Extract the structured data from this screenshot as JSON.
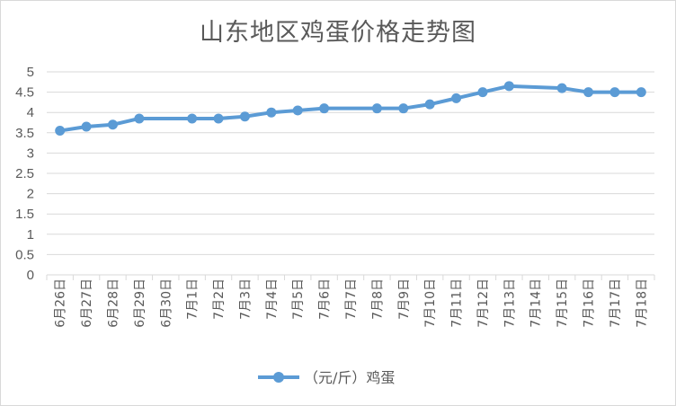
{
  "chart_data": {
    "type": "line",
    "title": "山东地区鸡蛋价格走势图",
    "xlabel": "",
    "ylabel": "",
    "ylim": [
      0,
      5
    ],
    "yticks": [
      "0",
      "0.5",
      "1",
      "1.5",
      "2",
      "2.5",
      "3",
      "3.5",
      "4",
      "4.5",
      "5"
    ],
    "grid": true,
    "legend_position": "bottom",
    "categories": [
      "6月26日",
      "6月27日",
      "6月28日",
      "6月29日",
      "6月30日",
      "7月1日",
      "7月2日",
      "7月3日",
      "7月4日",
      "7月5日",
      "7月6日",
      "7月7日",
      "7月8日",
      "7月9日",
      "7月10日",
      "7月11日",
      "7月12日",
      "7月13日",
      "7月14日",
      "7月15日",
      "7月16日",
      "7月17日",
      "7月18日"
    ],
    "series": [
      {
        "name": "（元/斤）鸡蛋",
        "color": "#5b9bd5",
        "values": [
          3.55,
          3.65,
          3.7,
          3.85,
          null,
          3.85,
          3.85,
          3.9,
          4.0,
          4.05,
          4.1,
          null,
          4.1,
          4.1,
          4.2,
          4.35,
          4.5,
          4.65,
          null,
          4.6,
          4.5,
          4.5,
          4.5
        ]
      }
    ]
  }
}
